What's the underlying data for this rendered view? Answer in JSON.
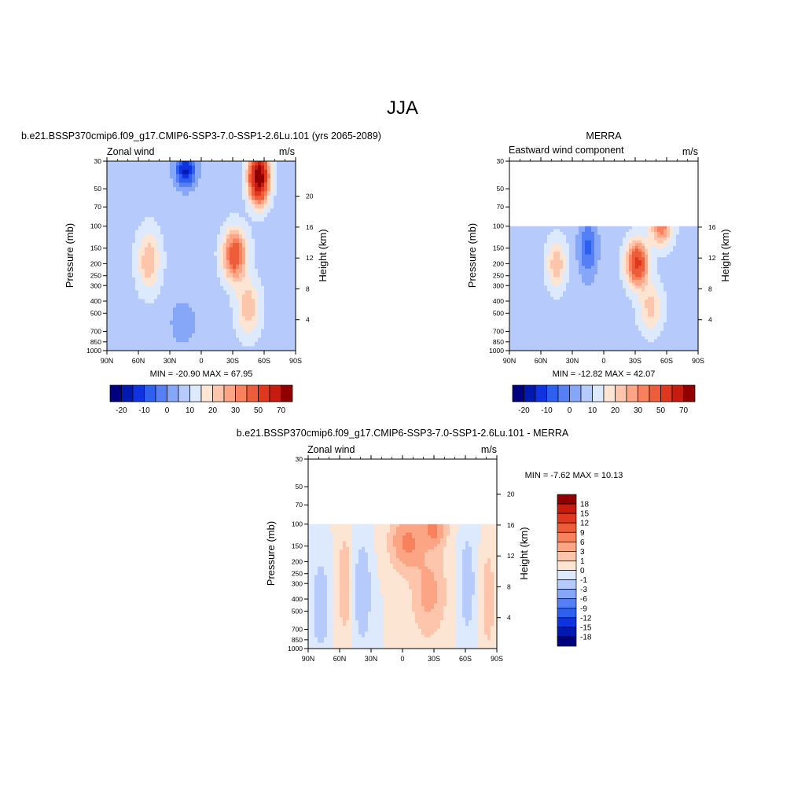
{
  "figure": {
    "title": "JJA"
  },
  "colors": {
    "levels_main": [
      "#00007f",
      "#0019b2",
      "#0f33e0",
      "#2f5fef",
      "#557ff5",
      "#86a6f8",
      "#b6cbfb",
      "#dde9fd",
      "#fde5d3",
      "#fdc6ac",
      "#fba584",
      "#f7825d",
      "#ee5d3a",
      "#e0381f",
      "#c61b0f",
      "#900000"
    ],
    "levels_diff": [
      "#00007f",
      "#0019b2",
      "#0f33e0",
      "#2f5fef",
      "#557ff5",
      "#86a6f8",
      "#b6cbfb",
      "#dde9fd",
      "#fde5d3",
      "#fdc6ac",
      "#fba584",
      "#f7825d",
      "#ee5d3a",
      "#e0381f",
      "#c61b0f",
      "#900000"
    ]
  },
  "chart_data": [
    {
      "type": "heatmap",
      "id": "model",
      "title": "b.e21.BSSP370cmip6.f09_g17.CMIP6-SSP3-7.0-SSP1-2.6Lu.101 (yrs 2065-2089)",
      "left_label": "Zonal wind",
      "units": "m/s",
      "xlabel": "",
      "ylabel": "Pressure (mb)",
      "y2label": "Height (km)",
      "x_ticks": [
        "90N",
        "60N",
        "30N",
        "0",
        "30S",
        "60S",
        "90S"
      ],
      "y_ticks": [
        30,
        50,
        70,
        100,
        150,
        200,
        250,
        300,
        400,
        500,
        700,
        850,
        1000
      ],
      "y2_ticks": [
        4,
        8,
        12,
        16,
        20
      ],
      "ylim": [
        1000,
        30
      ],
      "data_top_mb": 30,
      "stats": "MIN = -20.90  MAX =  67.95",
      "colorbar_labels": [
        "-20",
        "-10",
        "0",
        "10",
        "20",
        "30",
        "50",
        "70"
      ],
      "features": [
        {
          "lat": 50,
          "p": 190,
          "amp": 16,
          "wlat": 11,
          "wlogp": 0.55
        },
        {
          "lat": 15,
          "p": 36,
          "amp": -24,
          "wlat": 10,
          "wlogp": 0.3
        },
        {
          "lat": 17,
          "p": 600,
          "amp": -6,
          "wlat": 14,
          "wlogp": 0.45
        },
        {
          "lat": -32,
          "p": 170,
          "amp": 34,
          "wlat": 11,
          "wlogp": 0.45
        },
        {
          "lat": -55,
          "p": 40,
          "amp": 68,
          "wlat": 9,
          "wlogp": 0.45
        },
        {
          "lat": -45,
          "p": 450,
          "amp": 16,
          "wlat": 11,
          "wlogp": 0.5
        }
      ],
      "base": 3
    },
    {
      "type": "heatmap",
      "id": "obs",
      "title": "MERRA",
      "left_label": "Eastward wind component",
      "units": "m/s",
      "xlabel": "",
      "ylabel": "Pressure (mb)",
      "y2label": "Height (km)",
      "x_ticks": [
        "90N",
        "60N",
        "30N",
        "0",
        "30S",
        "60S",
        "90S"
      ],
      "y_ticks": [
        30,
        50,
        70,
        100,
        150,
        200,
        250,
        300,
        400,
        500,
        700,
        850,
        1000
      ],
      "y2_ticks": [
        4,
        8,
        12,
        16
      ],
      "ylim": [
        1000,
        30
      ],
      "data_top_mb": 100,
      "stats": "MIN = -12.82  MAX =  42.07",
      "colorbar_labels": [
        "-20",
        "-10",
        "0",
        "10",
        "20",
        "30",
        "50",
        "70"
      ],
      "features": [
        {
          "lat": 45,
          "p": 200,
          "amp": 16,
          "wlat": 9,
          "wlogp": 0.45
        },
        {
          "lat": 15,
          "p": 150,
          "amp": -14,
          "wlat": 9,
          "wlogp": 0.55
        },
        {
          "lat": -32,
          "p": 200,
          "amp": 40,
          "wlat": 10,
          "wlogp": 0.4
        },
        {
          "lat": -55,
          "p": 100,
          "amp": 26,
          "wlat": 10,
          "wlogp": 0.35
        },
        {
          "lat": -45,
          "p": 450,
          "amp": 14,
          "wlat": 11,
          "wlogp": 0.45
        }
      ],
      "base": 3
    },
    {
      "type": "heatmap",
      "id": "diff",
      "title": "b.e21.BSSP370cmip6.f09_g17.CMIP6-SSP3-7.0-SSP1-2.6Lu.101 - MERRA",
      "left_label": "Zonal wind",
      "units": "m/s",
      "xlabel": "",
      "ylabel": "Pressure (mb)",
      "y2label": "Height (km)",
      "x_ticks": [
        "90N",
        "60N",
        "30N",
        "0",
        "30S",
        "60S",
        "90S"
      ],
      "y_ticks": [
        30,
        50,
        70,
        100,
        150,
        200,
        250,
        300,
        400,
        500,
        700,
        850,
        1000
      ],
      "y2_ticks": [
        4,
        8,
        12,
        16,
        20
      ],
      "ylim": [
        1000,
        30
      ],
      "data_top_mb": 100,
      "stats": "MIN =  -7.62  MAX =  10.13",
      "colorbar_labels": [
        "18",
        "15",
        "12",
        "9",
        "6",
        "3",
        "1",
        "0",
        "-1",
        "-3",
        "-6",
        "-9",
        "-12",
        "-15",
        "-18"
      ],
      "features": [
        {
          "lat": 78,
          "p": 450,
          "amp": -3,
          "wlat": 7,
          "wlogp": 0.7
        },
        {
          "lat": 55,
          "p": 300,
          "amp": 2.5,
          "wlat": 6,
          "wlogp": 0.8
        },
        {
          "lat": 38,
          "p": 350,
          "amp": -3,
          "wlat": 7,
          "wlogp": 0.8
        },
        {
          "lat": -5,
          "p": 140,
          "amp": 7,
          "wlat": 14,
          "wlogp": 0.45
        },
        {
          "lat": -25,
          "p": 350,
          "amp": 4,
          "wlat": 14,
          "wlogp": 0.7
        },
        {
          "lat": -30,
          "p": 110,
          "amp": 7,
          "wlat": 10,
          "wlogp": 0.3
        },
        {
          "lat": -62,
          "p": 300,
          "amp": -2.5,
          "wlat": 6,
          "wlogp": 0.8
        },
        {
          "lat": -82,
          "p": 400,
          "amp": 2.5,
          "wlat": 5,
          "wlogp": 0.8
        }
      ],
      "base": 0
    }
  ]
}
